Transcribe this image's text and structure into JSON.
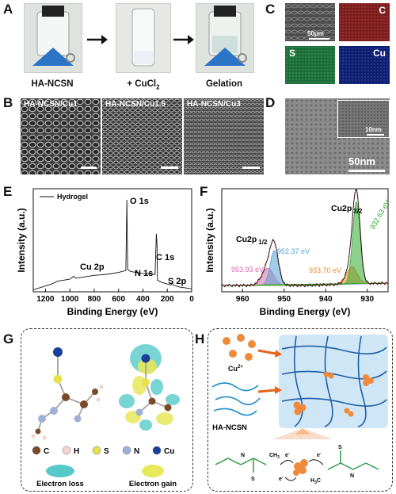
{
  "panels": {
    "a": "A",
    "b": "B",
    "c": "C",
    "d": "D",
    "e": "E",
    "f": "F",
    "g": "G",
    "h": "H"
  },
  "panel_a": {
    "captions": [
      "HA-NCSN",
      "+ CuCl",
      "Gelation"
    ],
    "cucl_sub": "2"
  },
  "panel_b": {
    "labels": [
      "HA-NCSN/Cu1",
      "HA-NCSN/Cu1.5",
      "HA-NCSN/Cu3"
    ]
  },
  "panel_c": {
    "scale": "50μm",
    "maps": [
      "C",
      "S",
      "Cu"
    ],
    "map_colors": [
      "#7a1f1f",
      "#1e6b3a",
      "#0f1f6e"
    ]
  },
  "panel_d": {
    "inset_scale": "10nm",
    "scale": "50nm"
  },
  "chart_e": {
    "type": "line",
    "legend": "Hydrogel",
    "xlabel": "Binding Energy (eV)",
    "ylabel": "Intensity (a.u.)",
    "xticks": [
      "1200",
      "1000",
      "800",
      "600",
      "400",
      "200",
      "0"
    ],
    "annotations": [
      "O 1s",
      "C 1s",
      "N 1s",
      "Cu 2p",
      "S 2p"
    ]
  },
  "chart_f": {
    "type": "line",
    "xlabel": "Binding Energy (eV)",
    "ylabel": "Intensity (a.u.)",
    "xticks": [
      "960",
      "950",
      "940",
      "930"
    ],
    "annotations": {
      "cu12": "Cu2p",
      "cu12sub": "1/2",
      "cu32": "Cu2p",
      "cu32sub": "3/2",
      "p1": "953.93 eV",
      "p2": "952.37 eV",
      "p3": "933.70 eV",
      "p4": "932.63 eV"
    },
    "colors": {
      "p1": "#d66aa8",
      "p2": "#5aa2d6",
      "p3": "#f08a1c",
      "p4": "#2fa82f"
    }
  },
  "chart_data": [
    {
      "type": "line",
      "series": [
        {
          "name": "Hydrogel",
          "x": [
            1300,
            1250,
            1150,
            1100,
            1000,
            970,
            950,
            900,
            800,
            700,
            600,
            540,
            532,
            525,
            500,
            400,
            300,
            290,
            285,
            280,
            250,
            200,
            170,
            160,
            150,
            100,
            50,
            0
          ],
          "y": [
            0.02,
            0.04,
            0.08,
            0.11,
            0.13,
            0.16,
            0.14,
            0.15,
            0.17,
            0.18,
            0.2,
            0.22,
            0.95,
            0.23,
            0.21,
            0.19,
            0.18,
            0.6,
            0.5,
            0.12,
            0.1,
            0.08,
            0.07,
            0.09,
            0.07,
            0.05,
            0.04,
            0.03
          ]
        }
      ],
      "xlim": [
        1300,
        0
      ],
      "xlabel": "Binding Energy (eV)",
      "ylabel": "Intensity (a.u.)"
    },
    {
      "type": "line",
      "series": [
        {
          "name": "952.37 eV",
          "peak": 952.37
        },
        {
          "name": "953.93 eV",
          "peak": 953.93
        },
        {
          "name": "933.70 eV",
          "peak": 933.7
        },
        {
          "name": "932.63 eV",
          "peak": 932.63
        }
      ],
      "xlim": [
        965,
        925
      ],
      "xlabel": "Binding Energy (eV)",
      "ylabel": "Intensity (a.u.)"
    }
  ],
  "panel_g": {
    "legend": [
      "C",
      "H",
      "S",
      "N",
      "Cu"
    ],
    "loss": "Electron loss",
    "gain": "Electron gain"
  },
  "panel_h": {
    "cu": "Cu",
    "cu_sup": "2+",
    "polymer": "HA-NCSN",
    "e": "e",
    "minus": "-",
    "ch3": "CH",
    "ch3sub": "3",
    "h3c": "H",
    "h3csub": "3",
    "h3cC": "C",
    "s": "S",
    "n": "N"
  }
}
